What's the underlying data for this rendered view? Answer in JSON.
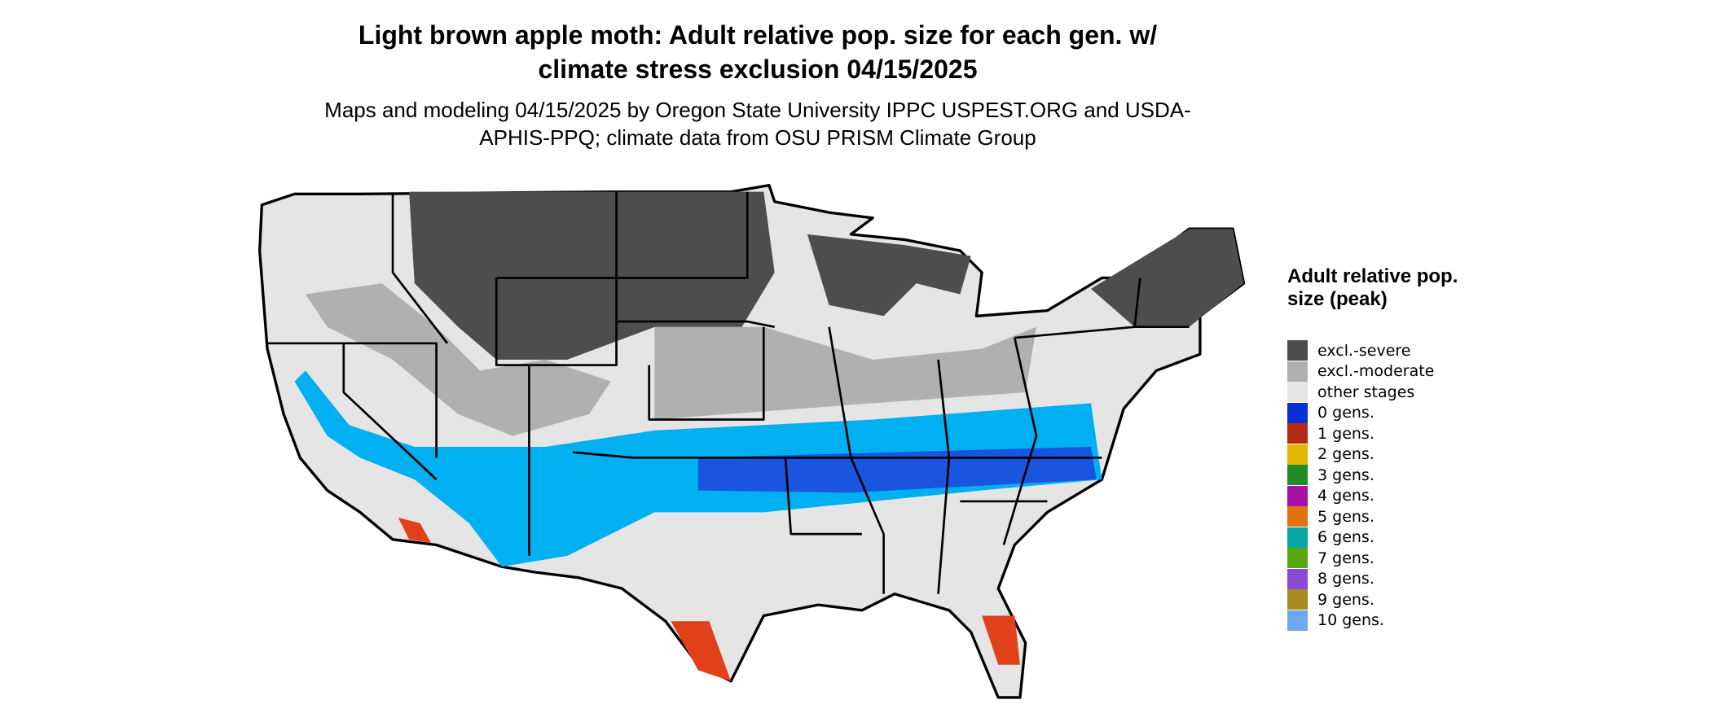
{
  "title": "Light brown apple moth: Adult relative pop. size for each gen. w/ climate stress exclusion 04/15/2025",
  "subtitle": "Maps and modeling 04/15/2025 by Oregon State University IPPC USPEST.ORG and USDA-APHIS-PPQ; climate data from OSU PRISM Climate Group",
  "legend": {
    "title": "Adult relative pop. size (peak)",
    "items": [
      {
        "label": "excl.-severe",
        "color": "#4d4d4d"
      },
      {
        "label": "excl.-moderate",
        "color": "#b0b0b0"
      },
      {
        "label": "other stages",
        "color": "#e5e5e5"
      },
      {
        "label": "0 gens.",
        "color": "#0a2fd6"
      },
      {
        "label": "1 gens.",
        "color": "#b22a14"
      },
      {
        "label": "2 gens.",
        "color": "#e0b800"
      },
      {
        "label": "3 gens.",
        "color": "#238a2a"
      },
      {
        "label": "4 gens.",
        "color": "#a410a8"
      },
      {
        "label": "5 gens.",
        "color": "#e07010"
      },
      {
        "label": "6 gens.",
        "color": "#0aa6a6"
      },
      {
        "label": "7 gens.",
        "color": "#5aa810"
      },
      {
        "label": "8 gens.",
        "color": "#8a4ad6"
      },
      {
        "label": "9 gens.",
        "color": "#a88a20"
      },
      {
        "label": "10 gens.",
        "color": "#6ea8ee"
      }
    ]
  }
}
